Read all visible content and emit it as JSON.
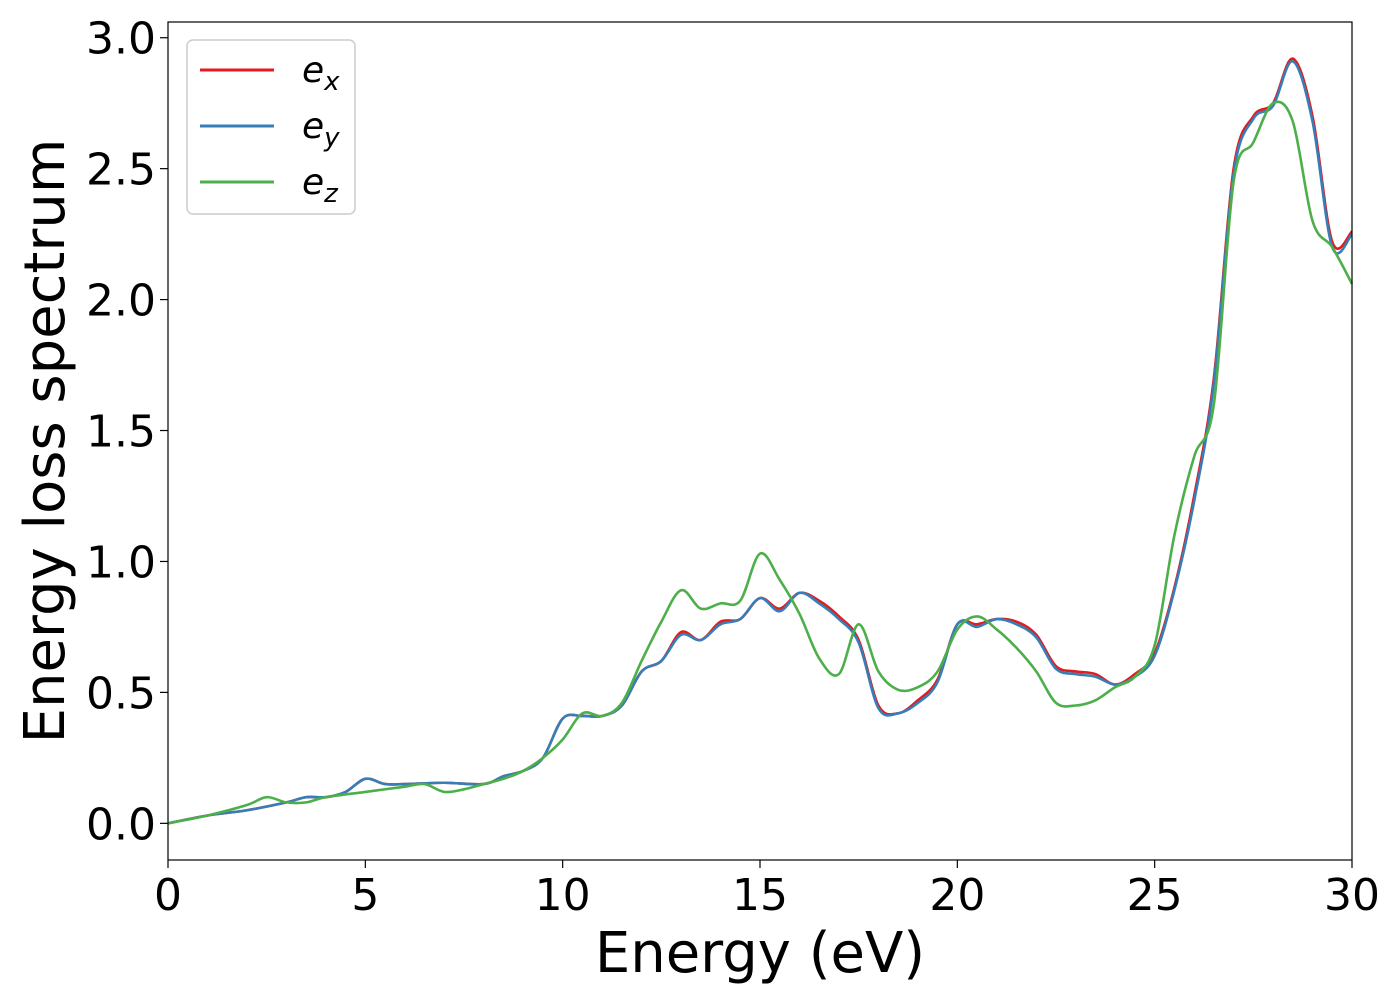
{
  "chart_data": {
    "type": "line",
    "xlabel": "Energy (eV)",
    "ylabel": "Energy loss spectrum",
    "xlim": [
      0,
      30
    ],
    "ylim": [
      -0.14,
      3.06
    ],
    "xticks": [
      0,
      5,
      10,
      15,
      20,
      25,
      30
    ],
    "yticks": [
      0.0,
      0.5,
      1.0,
      1.5,
      2.0,
      2.5,
      3.0
    ],
    "xtick_labels": [
      "0",
      "5",
      "10",
      "15",
      "20",
      "25",
      "30"
    ],
    "ytick_labels": [
      "0.0",
      "0.5",
      "1.0",
      "1.5",
      "2.0",
      "2.5",
      "3.0"
    ],
    "grid": false,
    "legend_position": "top-left",
    "series": [
      {
        "name": "e",
        "subscript": "x",
        "color": "#e41a1c",
        "x": [
          0,
          1,
          2,
          3,
          3.5,
          4,
          4.5,
          5,
          5.5,
          6,
          7,
          8,
          8.5,
          9,
          9.5,
          10,
          10.5,
          11,
          11.5,
          12,
          12.5,
          13,
          13.5,
          14,
          14.5,
          15,
          15.5,
          16,
          16.5,
          17,
          17.5,
          18,
          18.5,
          19,
          19.5,
          20,
          20.5,
          21,
          21.5,
          22,
          22.5,
          23,
          23.5,
          24,
          24.5,
          25,
          25.5,
          26,
          26.5,
          27,
          27.5,
          28,
          28.5,
          29,
          29.5,
          30
        ],
        "y": [
          0,
          0.03,
          0.05,
          0.08,
          0.1,
          0.1,
          0.12,
          0.17,
          0.15,
          0.15,
          0.155,
          0.15,
          0.18,
          0.2,
          0.25,
          0.4,
          0.41,
          0.41,
          0.45,
          0.58,
          0.62,
          0.73,
          0.7,
          0.77,
          0.78,
          0.86,
          0.82,
          0.88,
          0.85,
          0.79,
          0.7,
          0.45,
          0.42,
          0.47,
          0.55,
          0.76,
          0.76,
          0.78,
          0.77,
          0.72,
          0.6,
          0.58,
          0.57,
          0.53,
          0.57,
          0.65,
          0.9,
          1.25,
          1.7,
          2.5,
          2.7,
          2.75,
          2.92,
          2.7,
          2.22,
          2.26
        ]
      },
      {
        "name": "e",
        "subscript": "y",
        "color": "#377eb8",
        "x": [
          0,
          1,
          2,
          3,
          3.5,
          4,
          4.5,
          5,
          5.5,
          6,
          7,
          8,
          8.5,
          9,
          9.5,
          10,
          10.5,
          11,
          11.5,
          12,
          12.5,
          13,
          13.5,
          14,
          14.5,
          15,
          15.5,
          16,
          16.5,
          17,
          17.5,
          18,
          18.5,
          19,
          19.5,
          20,
          20.5,
          21,
          21.5,
          22,
          22.5,
          23,
          23.5,
          24,
          24.5,
          25,
          25.5,
          26,
          26.5,
          27,
          27.5,
          28,
          28.5,
          29,
          29.5,
          30
        ],
        "y": [
          0,
          0.03,
          0.05,
          0.08,
          0.1,
          0.1,
          0.12,
          0.17,
          0.15,
          0.15,
          0.155,
          0.15,
          0.18,
          0.2,
          0.25,
          0.4,
          0.41,
          0.41,
          0.45,
          0.58,
          0.62,
          0.72,
          0.7,
          0.76,
          0.78,
          0.86,
          0.81,
          0.88,
          0.84,
          0.78,
          0.69,
          0.44,
          0.42,
          0.46,
          0.54,
          0.76,
          0.75,
          0.78,
          0.76,
          0.71,
          0.59,
          0.57,
          0.56,
          0.53,
          0.56,
          0.64,
          0.89,
          1.23,
          1.68,
          2.48,
          2.69,
          2.74,
          2.91,
          2.68,
          2.2,
          2.25
        ]
      },
      {
        "name": "e",
        "subscript": "z",
        "color": "#4daf4a",
        "x": [
          0,
          1,
          2,
          2.5,
          3,
          3.5,
          4,
          5,
          6,
          6.5,
          7,
          7.5,
          8,
          8.5,
          9,
          9.5,
          10,
          10.5,
          11,
          11.5,
          12,
          12.5,
          13,
          13.5,
          14,
          14.5,
          15,
          15.5,
          16,
          16.5,
          17,
          17.5,
          18,
          18.5,
          19,
          19.5,
          20,
          20.5,
          21,
          21.5,
          22,
          22.5,
          23,
          23.5,
          24,
          24.5,
          25,
          25.5,
          26,
          26.5,
          27,
          27.5,
          28,
          28.5,
          29,
          29.5,
          30
        ],
        "y": [
          0,
          0.03,
          0.07,
          0.1,
          0.08,
          0.08,
          0.1,
          0.12,
          0.14,
          0.15,
          0.12,
          0.13,
          0.15,
          0.17,
          0.2,
          0.25,
          0.32,
          0.42,
          0.41,
          0.46,
          0.62,
          0.77,
          0.89,
          0.82,
          0.84,
          0.85,
          1.03,
          0.93,
          0.8,
          0.63,
          0.57,
          0.76,
          0.58,
          0.51,
          0.52,
          0.58,
          0.74,
          0.79,
          0.74,
          0.67,
          0.58,
          0.46,
          0.45,
          0.47,
          0.52,
          0.56,
          0.68,
          1.1,
          1.4,
          1.6,
          2.45,
          2.6,
          2.75,
          2.68,
          2.3,
          2.2,
          2.06
        ]
      }
    ]
  }
}
